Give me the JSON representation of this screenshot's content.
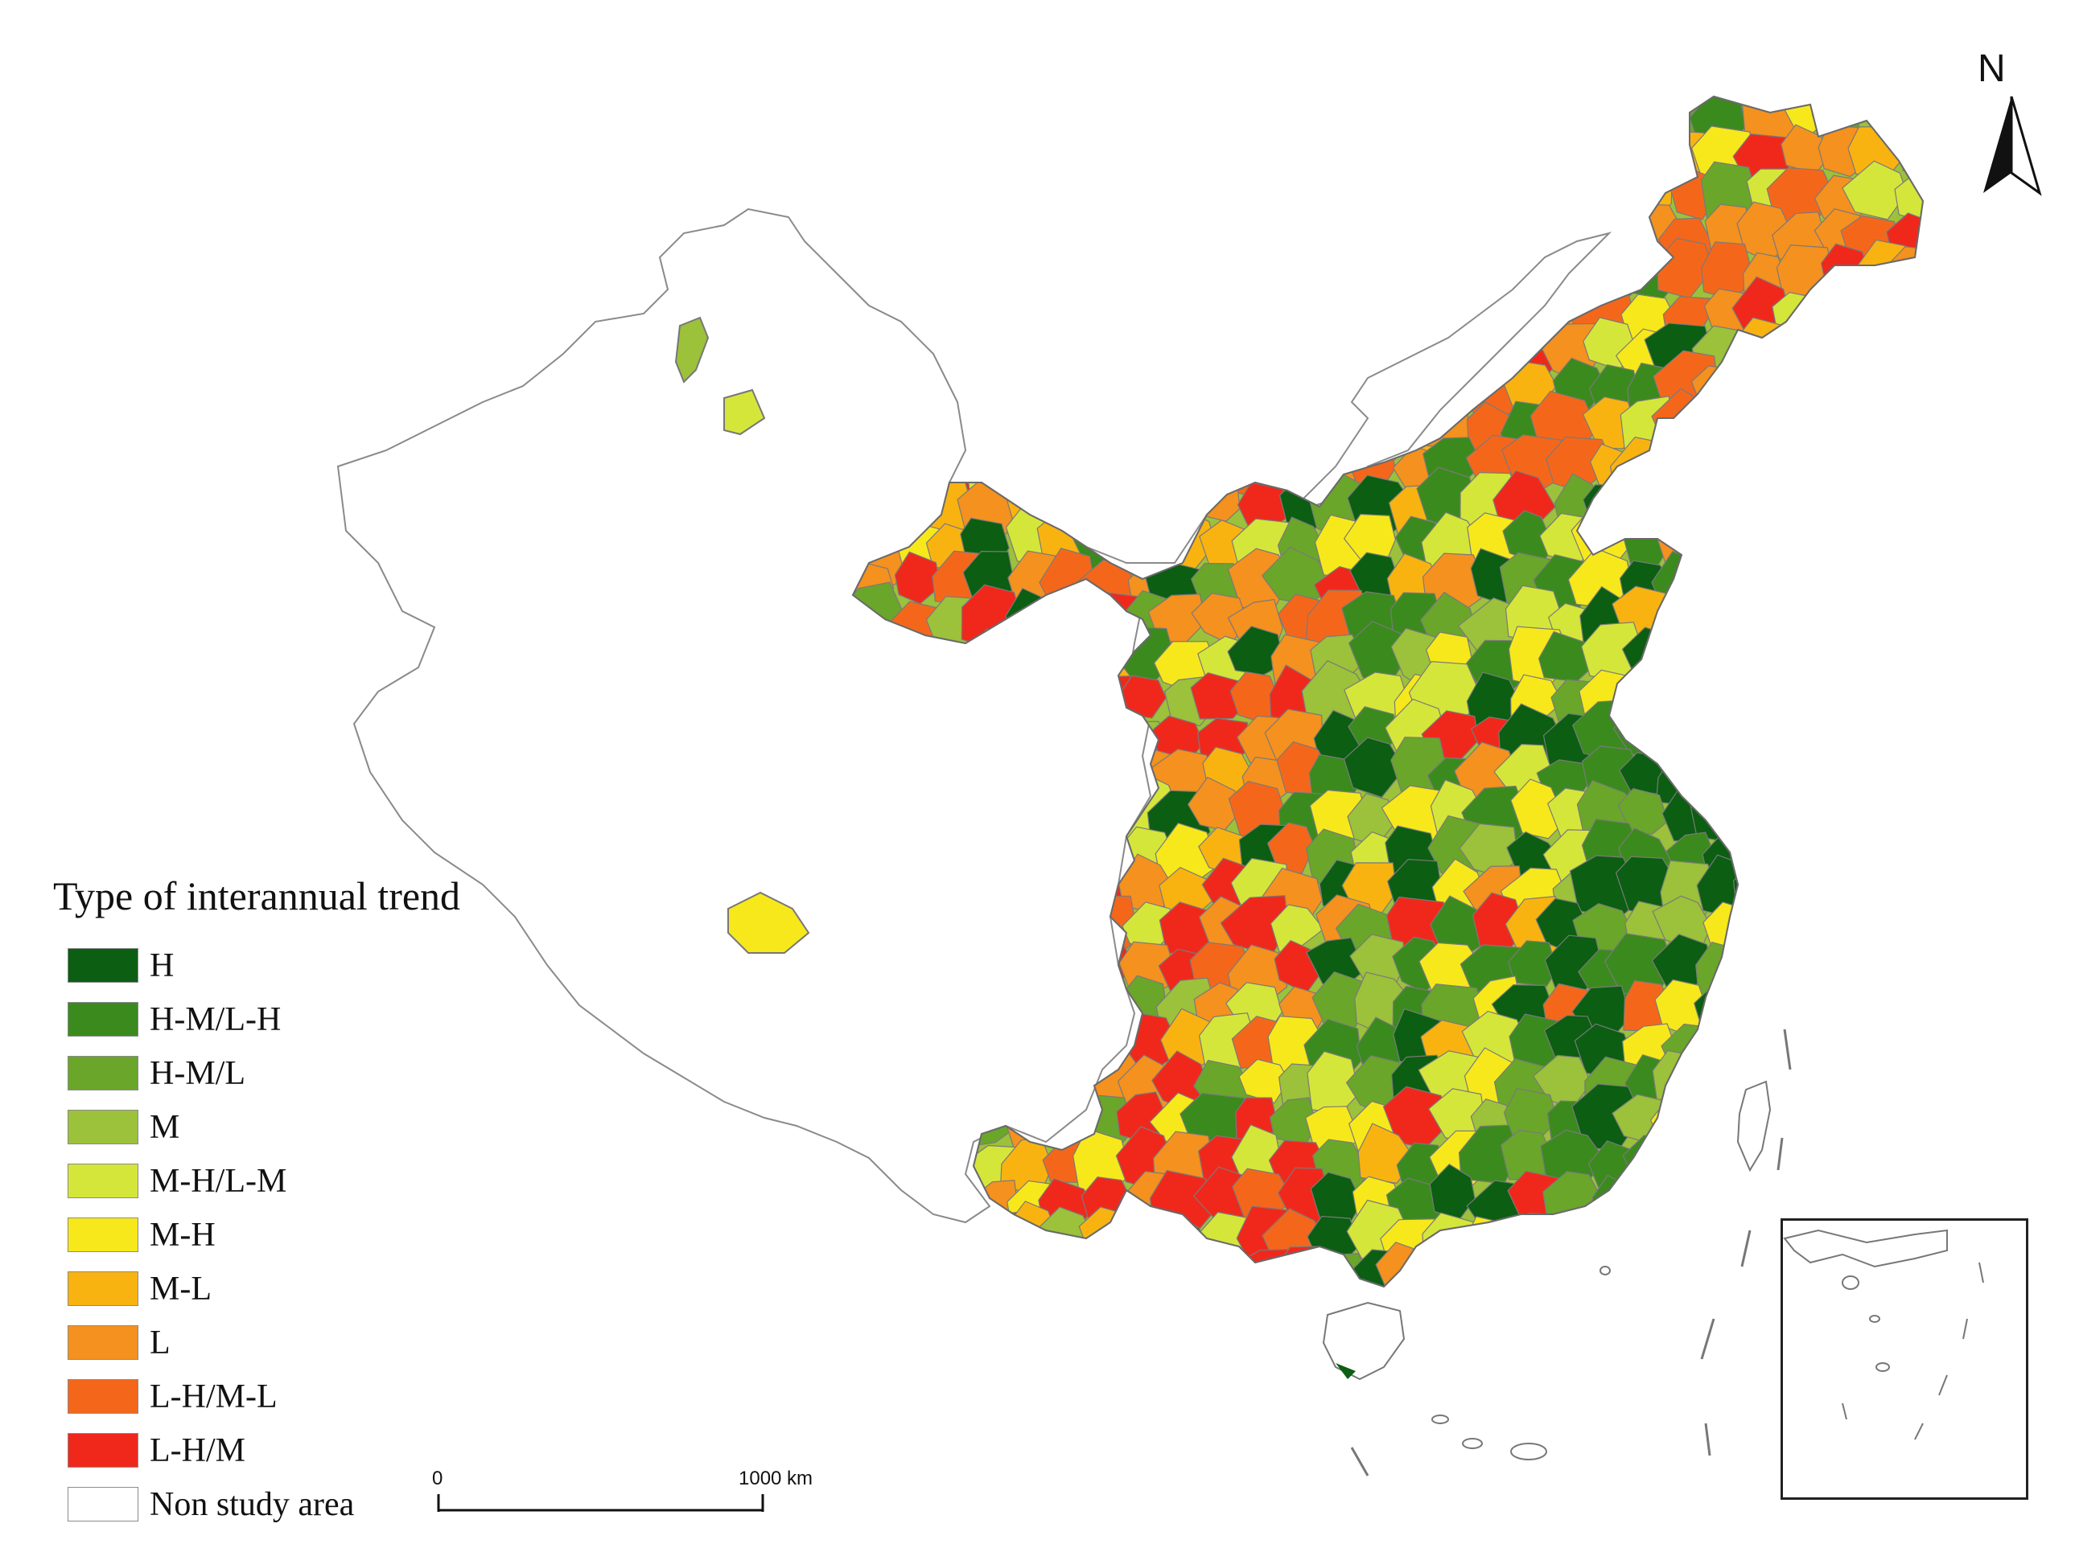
{
  "legend": {
    "title": "Type of interannual trend",
    "items": [
      {
        "label": "H",
        "color": "#0b5e12"
      },
      {
        "label": "H-M/L-H",
        "color": "#3b8a1e"
      },
      {
        "label": "H-M/L",
        "color": "#6aa62a"
      },
      {
        "label": "M",
        "color": "#9cc13a"
      },
      {
        "label": "M-H/L-M",
        "color": "#d5e63a"
      },
      {
        "label": "M-H",
        "color": "#f7e81c"
      },
      {
        "label": "M-L",
        "color": "#f9b310"
      },
      {
        "label": "L",
        "color": "#f5911e"
      },
      {
        "label": "L-H/M-L",
        "color": "#f4671b"
      },
      {
        "label": "L-H/M",
        "color": "#f0281c"
      },
      {
        "label": "Non study area",
        "color": "#ffffff"
      }
    ]
  },
  "north_arrow": {
    "label": "N"
  },
  "scale_bar": {
    "left_label": "0",
    "right_label": "1000 km"
  },
  "inset": {
    "description_icon": "south-china-sea-inset-map"
  }
}
